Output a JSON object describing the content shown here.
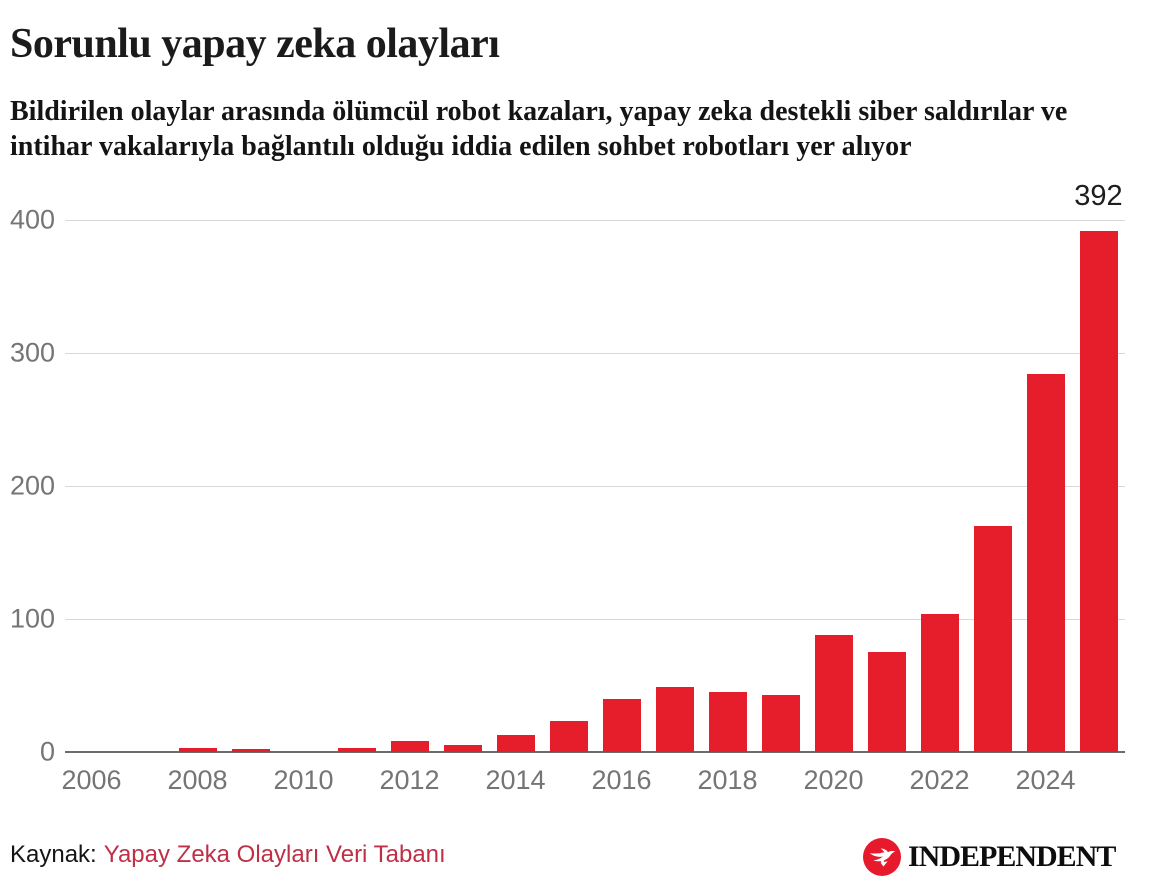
{
  "header": {
    "title": "Sorunlu yapay zeka olayları",
    "subtitle_line1": "Bildirilen olaylar arasında ölümcül robot kazaları, yapay zeka destekli siber saldırılar ve",
    "subtitle_line2": "intihar vakalarıyla bağlantılı olduğu iddia edilen sohbet robotları yer alıyor"
  },
  "chart_data": {
    "type": "bar",
    "title": "Sorunlu yapay zeka olayları",
    "subtitle": "Bildirilen olaylar arasında ölümcül robot kazaları, yapay zeka destekli siber saldırılar ve intihar vakalarıyla bağlantılı olduğu iddia edilen sohbet robotları yer alıyor",
    "categories": [
      2006,
      2007,
      2008,
      2009,
      2010,
      2011,
      2012,
      2013,
      2014,
      2015,
      2016,
      2017,
      2018,
      2019,
      2020,
      2021,
      2022,
      2023,
      2024,
      2025
    ],
    "values": [
      0,
      0,
      3,
      2,
      0,
      3,
      8,
      5,
      13,
      23,
      40,
      49,
      45,
      43,
      88,
      75,
      104,
      170,
      284,
      392
    ],
    "bar_label": {
      "category": 2025,
      "text": "392"
    },
    "y_ticks": [
      0,
      100,
      200,
      300,
      400
    ],
    "x_tick_labels": [
      "2006",
      "2008",
      "2010",
      "2012",
      "2014",
      "2016",
      "2018",
      "2020",
      "2022",
      "2024"
    ],
    "xlabel": "",
    "ylabel": "",
    "ylim": [
      0,
      400
    ],
    "grid": true,
    "legend": "none",
    "bar_color": "#e61e2c"
  },
  "footer": {
    "source_label": "Kaynak:",
    "source_link": "Yapay Zeka Olayları Veri Tabanı",
    "brand": "INDEPENDENT"
  },
  "colors": {
    "bar_red": "#e61e2c",
    "brand_red": "#e6192d",
    "link_red": "#bf3046",
    "grid_gray": "#d8d8d8",
    "axis_gray": "#6b6b6b",
    "tick_gray": "#757575",
    "text_black": "#1a1a1a"
  }
}
